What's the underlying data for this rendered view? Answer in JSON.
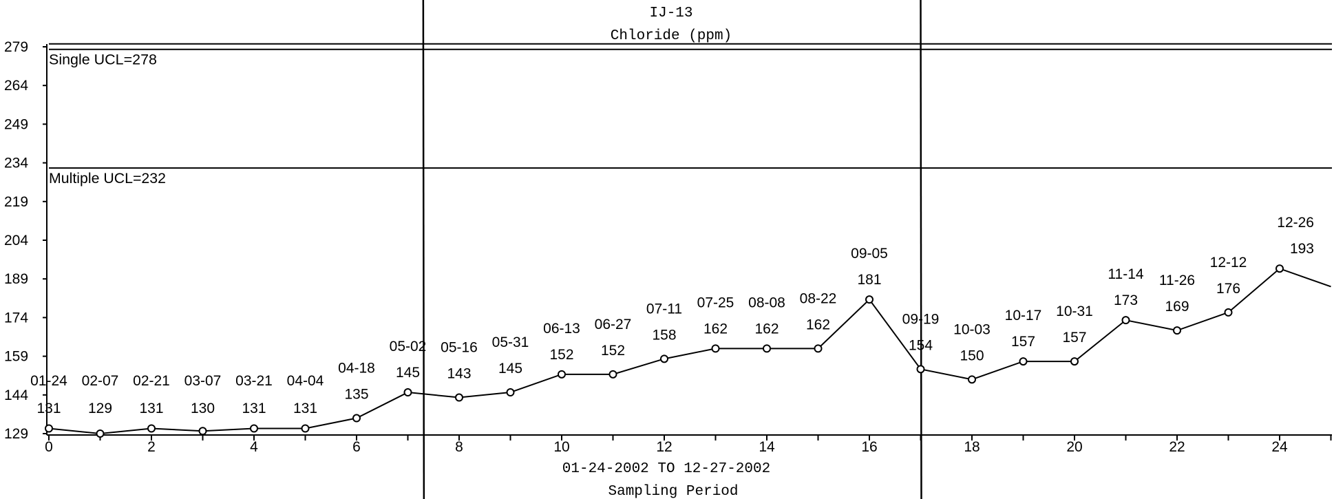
{
  "chart_data": {
    "type": "line",
    "title": "IJ-13",
    "subtitle": "Chloride (ppm)",
    "xlabel": "Sampling Period",
    "date_range": "01-24-2002 TO 12-27-2002",
    "xlim": [
      0,
      25
    ],
    "ylim": [
      128,
      280
    ],
    "x_ticks": [
      0,
      2,
      4,
      6,
      8,
      10,
      12,
      14,
      16,
      18,
      20,
      22,
      24
    ],
    "y_ticks": [
      129,
      144,
      159,
      174,
      189,
      204,
      219,
      234,
      249,
      264,
      279
    ],
    "grid": false,
    "control_limits": [
      {
        "label": "Single UCL=278",
        "value": 278
      },
      {
        "label": "Multiple UCL=232",
        "value": 232
      }
    ],
    "line_color": "#000000",
    "points": [
      {
        "x": 0,
        "y": 131,
        "date": "01-24",
        "label": "131"
      },
      {
        "x": 1,
        "y": 129,
        "date": "02-07",
        "label": "129"
      },
      {
        "x": 2,
        "y": 131,
        "date": "02-21",
        "label": "131"
      },
      {
        "x": 3,
        "y": 130,
        "date": "03-07",
        "label": "130"
      },
      {
        "x": 4,
        "y": 131,
        "date": "03-21",
        "label": "131"
      },
      {
        "x": 5,
        "y": 131,
        "date": "04-04",
        "label": "131"
      },
      {
        "x": 6,
        "y": 135,
        "date": "04-18",
        "label": "135"
      },
      {
        "x": 7,
        "y": 145,
        "date": "05-02",
        "label": "145"
      },
      {
        "x": 8,
        "y": 143,
        "date": "05-16",
        "label": "143"
      },
      {
        "x": 9,
        "y": 145,
        "date": "05-31",
        "label": "145"
      },
      {
        "x": 10,
        "y": 152,
        "date": "06-13",
        "label": "152"
      },
      {
        "x": 11,
        "y": 152,
        "date": "06-27",
        "label": "152"
      },
      {
        "x": 12,
        "y": 158,
        "date": "07-11",
        "label": "158"
      },
      {
        "x": 13,
        "y": 162,
        "date": "07-25",
        "label": "162"
      },
      {
        "x": 14,
        "y": 162,
        "date": "08-08",
        "label": "162"
      },
      {
        "x": 15,
        "y": 162,
        "date": "08-22",
        "label": "162"
      },
      {
        "x": 16,
        "y": 181,
        "date": "09-05",
        "label": "181"
      },
      {
        "x": 17,
        "y": 154,
        "date": "09-19",
        "label": "154"
      },
      {
        "x": 18,
        "y": 150,
        "date": "10-03",
        "label": "150"
      },
      {
        "x": 19,
        "y": 157,
        "date": "10-17",
        "label": "157"
      },
      {
        "x": 20,
        "y": 157,
        "date": "10-31",
        "label": "157"
      },
      {
        "x": 21,
        "y": 173,
        "date": "11-14",
        "label": "173"
      },
      {
        "x": 22,
        "y": 169,
        "date": "11-26",
        "label": "169"
      },
      {
        "x": 23,
        "y": 176,
        "date": "12-12",
        "label": "176"
      },
      {
        "x": 24,
        "y": 193,
        "date": "12-26",
        "label": "193"
      }
    ],
    "tail_point": {
      "x": 25,
      "y": 186
    },
    "phase_dividers": [
      7.3,
      17
    ]
  }
}
